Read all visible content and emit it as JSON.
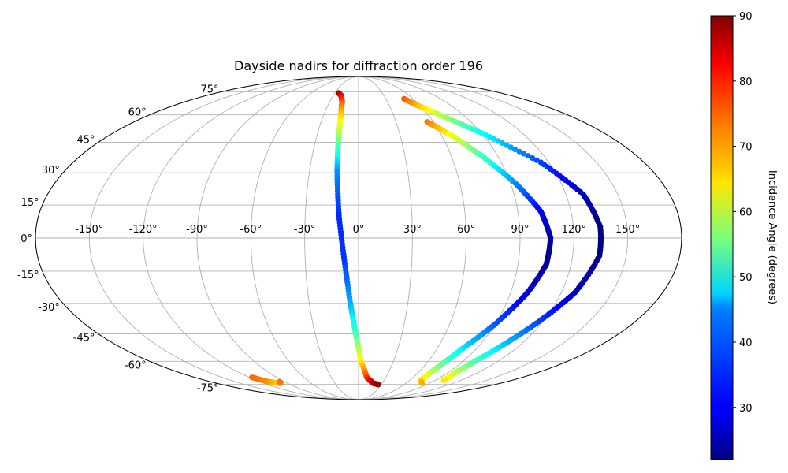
{
  "chart_data": {
    "type": "scatter",
    "projection": "mollweide",
    "title": "Dayside nadirs for diffraction order 196",
    "x_ticks": [
      "-150°",
      "-120°",
      "-90°",
      "-60°",
      "-30°",
      "0°",
      "30°",
      "60°",
      "90°",
      "120°",
      "150°"
    ],
    "y_ticks": [
      "75°",
      "60°",
      "45°",
      "30°",
      "15°",
      "0°",
      "-15°",
      "-30°",
      "-45°",
      "-60°",
      "-75°"
    ],
    "x_tick_values": [
      -150,
      -120,
      -90,
      -60,
      -30,
      0,
      30,
      60,
      90,
      120,
      150
    ],
    "y_tick_values": [
      75,
      60,
      45,
      30,
      15,
      0,
      -15,
      -30,
      -45,
      -60,
      -75
    ],
    "grid": true,
    "colormap": "jet",
    "colorbar": {
      "label": "Incidence Angle (degrees)",
      "range": [
        22,
        90
      ],
      "ticks": [
        "90",
        "80",
        "70",
        "60",
        "50",
        "40",
        "30"
      ],
      "tick_values": [
        90,
        80,
        70,
        60,
        50,
        40,
        30
      ],
      "placement": "right"
    },
    "series": [
      {
        "points": [
          {
            "lon": -25,
            "lat": 74,
            "inc": 88
          },
          {
            "lon": -20,
            "lat": 72,
            "inc": 83
          },
          {
            "lon": -17,
            "lat": 68,
            "inc": 77
          },
          {
            "lon": -15,
            "lat": 60,
            "inc": 68
          },
          {
            "lon": -14,
            "lat": 45,
            "inc": 55
          },
          {
            "lon": -13,
            "lat": 30,
            "inc": 40
          },
          {
            "lon": -11,
            "lat": 10,
            "inc": 33
          },
          {
            "lon": -8,
            "lat": -10,
            "inc": 34
          },
          {
            "lon": -5,
            "lat": -30,
            "inc": 42
          },
          {
            "lon": -2,
            "lat": -45,
            "inc": 52
          },
          {
            "lon": 2,
            "lat": -60,
            "inc": 65
          },
          {
            "lon": 9,
            "lat": -70,
            "inc": 77
          },
          {
            "lon": 18,
            "lat": -74,
            "inc": 86
          },
          {
            "lon": 26,
            "lat": -75,
            "inc": 89
          }
        ]
      },
      {
        "points": [
          {
            "lon": 55,
            "lat": 56,
            "inc": 74
          },
          {
            "lon": 60,
            "lat": 53,
            "inc": 70
          },
          {
            "lon": 68,
            "lat": 48,
            "inc": 63
          },
          {
            "lon": 80,
            "lat": 38,
            "inc": 52
          },
          {
            "lon": 93,
            "lat": 25,
            "inc": 40
          },
          {
            "lon": 103,
            "lat": 12,
            "inc": 30
          },
          {
            "lon": 107,
            "lat": 0,
            "inc": 24
          },
          {
            "lon": 106,
            "lat": -12,
            "inc": 23
          },
          {
            "lon": 100,
            "lat": -25,
            "inc": 28
          },
          {
            "lon": 90,
            "lat": -40,
            "inc": 36
          },
          {
            "lon": 80,
            "lat": -52,
            "inc": 45
          },
          {
            "lon": 75,
            "lat": -60,
            "inc": 52
          },
          {
            "lon": 72,
            "lat": -67,
            "inc": 60
          },
          {
            "lon": 73,
            "lat": -72,
            "inc": 66
          },
          {
            "lon": 80,
            "lat": -74,
            "inc": 70
          }
        ]
      },
      {
        "points": [
          {
            "lon": 50,
            "lat": 70,
            "inc": 76
          },
          {
            "lon": 57,
            "lat": 66,
            "inc": 70
          },
          {
            "lon": 70,
            "lat": 60,
            "inc": 60
          },
          {
            "lon": 90,
            "lat": 50,
            "inc": 48
          },
          {
            "lon": 115,
            "lat": 35,
            "inc": 35
          },
          {
            "lon": 130,
            "lat": 20,
            "inc": 26
          },
          {
            "lon": 135,
            "lat": 5,
            "inc": 22
          },
          {
            "lon": 135,
            "lat": -8,
            "inc": 22
          },
          {
            "lon": 128,
            "lat": -25,
            "inc": 26
          },
          {
            "lon": 118,
            "lat": -38,
            "inc": 34
          },
          {
            "lon": 108,
            "lat": -50,
            "inc": 43
          },
          {
            "lon": 100,
            "lat": -60,
            "inc": 52
          },
          {
            "lon": 97,
            "lat": -67,
            "inc": 60
          },
          {
            "lon": 100,
            "lat": -72,
            "inc": 66
          }
        ]
      },
      {
        "points": [
          {
            "lon": -117,
            "lat": -70,
            "inc": 75
          },
          {
            "lon": -110,
            "lat": -73,
            "inc": 72
          },
          {
            "lon": -102,
            "lat": -74,
            "inc": 68
          },
          {
            "lon": -98,
            "lat": -74,
            "inc": 70
          },
          {
            "lon": -96,
            "lat": -73,
            "inc": 74
          }
        ]
      }
    ]
  }
}
